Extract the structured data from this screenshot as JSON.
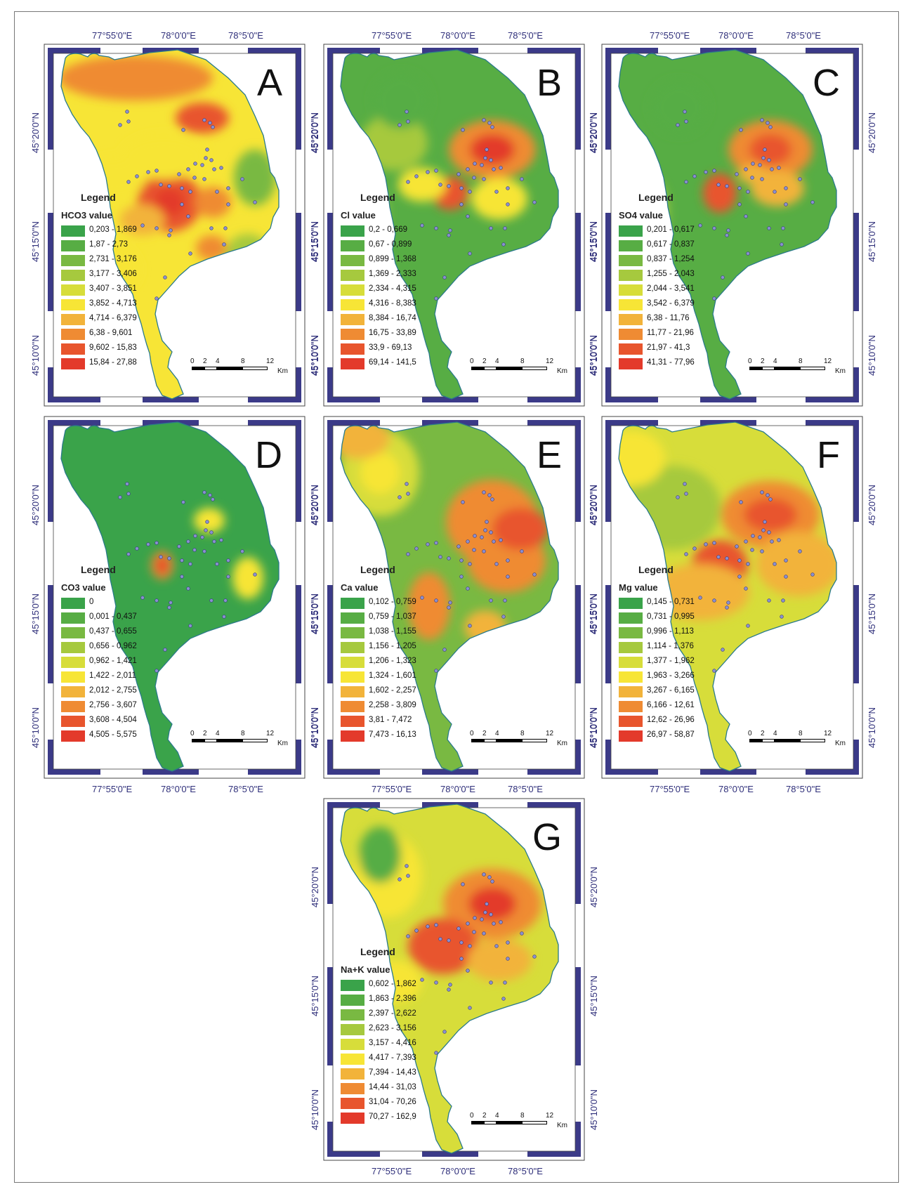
{
  "colors": {
    "frame_blue": "#3b3a88",
    "ramp": [
      "#3aa34a",
      "#57ad44",
      "#79b942",
      "#a6c93e",
      "#d7dd3a",
      "#f7e536",
      "#f2b33a",
      "#ef8b33",
      "#e8552d",
      "#e33a2b"
    ]
  },
  "coordinates": {
    "lon": [
      "77°55'0\"E",
      "78°0'0\"E",
      "78°5'0\"E"
    ],
    "lat": [
      "45°20'0\"N",
      "45°15'0\"N",
      "45°10'0\"N"
    ]
  },
  "legend_title": "Legend",
  "scale_bar": {
    "ticks": [
      "0",
      "2",
      "4",
      "8",
      "12"
    ],
    "unit": "Km"
  },
  "panels": [
    {
      "letter": "A",
      "label": "HCO3 value",
      "classes": [
        "0,203 - 1,869",
        "1,87 - 2,73",
        "2,731 - 3,176",
        "3,177 - 3,406",
        "3,407 - 3,851",
        "3,852 - 4,713",
        "4,714 - 6,379",
        "6,38 - 9,601",
        "9,602 - 15,83",
        "15,84 - 27,88"
      ]
    },
    {
      "letter": "B",
      "label": "Cl value",
      "classes": [
        "0,2 - 0,669",
        "0,67 - 0,899",
        "0,899 - 1,368",
        "1,369 - 2,333",
        "2,334 - 4,315",
        "4,316 - 8,383",
        "8,384 - 16,74",
        "16,75 - 33,89",
        "33,9 - 69,13",
        "69,14 - 141,5"
      ]
    },
    {
      "letter": "C",
      "label": "SO4 value",
      "classes": [
        "0,201 - 0,617",
        "0,617 - 0,837",
        "0,837 - 1,254",
        "1,255 - 2,043",
        "2,044 - 3,541",
        "3,542 - 6,379",
        "6,38 - 11,76",
        "11,77 - 21,96",
        "21,97 - 41,3",
        "41,31 - 77,96"
      ]
    },
    {
      "letter": "D",
      "label": "CO3 value",
      "classes": [
        "0",
        "0,001 - 0,437",
        "0,437 - 0,655",
        "0,656 - 0,962",
        "0,962 - 1,421",
        "1,422 - 2,011",
        "2,012 - 2,755",
        "2,756 - 3,607",
        "3,608 - 4,504",
        "4,505 - 5,575"
      ]
    },
    {
      "letter": "E",
      "label": "Ca value",
      "classes": [
        "0,102 - 0,759",
        "0,759 - 1,037",
        "1,038 - 1,155",
        "1,156 - 1,205",
        "1,206 - 1,323",
        "1,324 - 1,601",
        "1,602 - 2,257",
        "2,258 - 3,809",
        "3,81 - 7,472",
        "7,473 - 16,13"
      ]
    },
    {
      "letter": "F",
      "label": "Mg value",
      "classes": [
        "0,145 - 0,731",
        "0,731 - 0,995",
        "0,996 - 1,113",
        "1,114 - 1,376",
        "1,377 - 1,962",
        "1,963 - 3,266",
        "3,267 - 6,165",
        "6,166 - 12,61",
        "12,62 - 26,96",
        "26,97 - 58,87"
      ]
    },
    {
      "letter": "G",
      "label": "Na+K value",
      "classes": [
        "0,602 - 1,862",
        "1,863 - 2,396",
        "2,397 - 2,622",
        "2,623 - 3,156",
        "3,157 - 4,416",
        "4,417 - 7,393",
        "7,394 - 14,43",
        "14,44 - 31,03",
        "31,04 - 70,26",
        "70,27 - 162,9"
      ]
    }
  ]
}
